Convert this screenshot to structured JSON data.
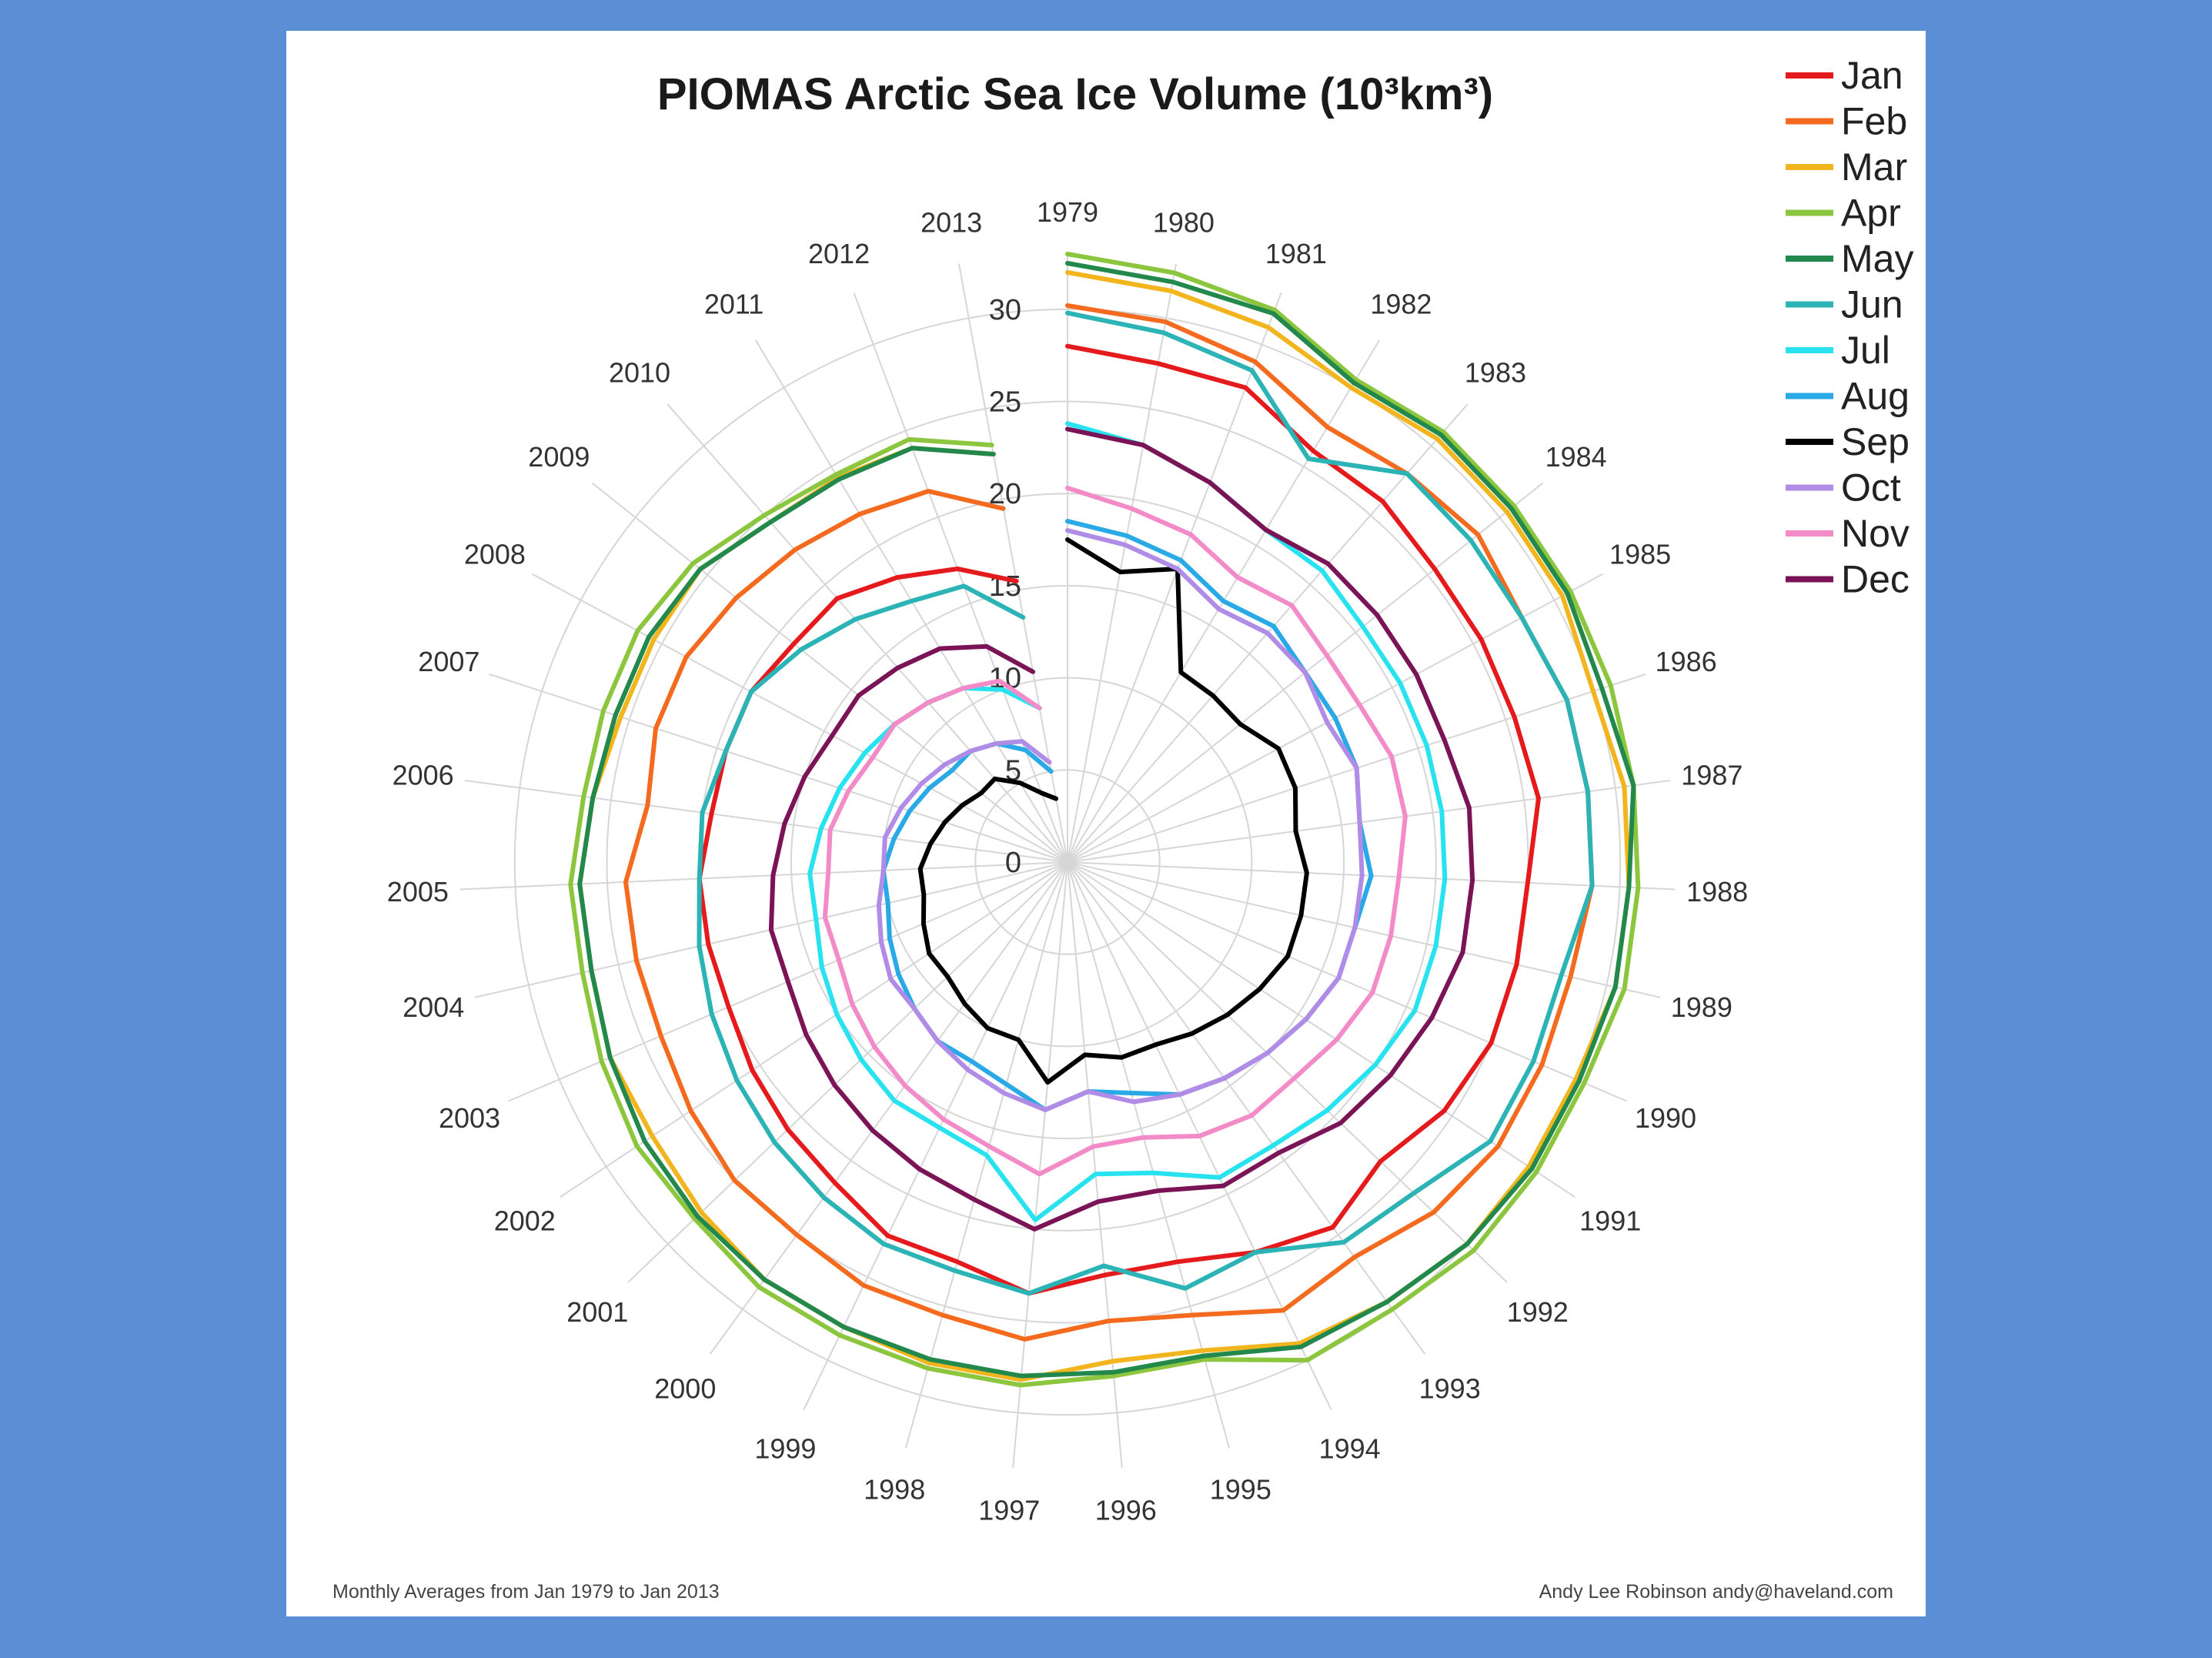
{
  "page": {
    "background": "#5a8fd6",
    "card_background": "#ffffff"
  },
  "chart_data": {
    "type": "radar-line",
    "title": "PIOMAS Arctic Sea Ice Volume (10³km³)",
    "footer_left": "Monthly Averages from Jan 1979 to Jan 2013",
    "footer_right": "Andy Lee Robinson andy@haveland.com",
    "radial_ticks": [
      "0",
      "5",
      "10",
      "15",
      "20",
      "25",
      "30"
    ],
    "radial_tick_values": [
      0,
      5,
      10,
      15,
      20,
      25,
      30
    ],
    "rlim": [
      0,
      33
    ],
    "grid": true,
    "legend_position": "top-right",
    "years": [
      "1979",
      "1980",
      "1981",
      "1982",
      "1983",
      "1984",
      "1985",
      "1986",
      "1987",
      "1988",
      "1989",
      "1990",
      "1991",
      "1992",
      "1993",
      "1994",
      "1995",
      "1996",
      "1997",
      "1998",
      "1999",
      "2000",
      "2001",
      "2002",
      "2003",
      "2004",
      "2005",
      "2006",
      "2007",
      "2008",
      "2009",
      "2010",
      "2011",
      "2012",
      "2013"
    ],
    "series": [
      {
        "name": "Jan",
        "color": "#e41a1c",
        "values": [
          28,
          27.5,
          27.5,
          26,
          26,
          25.5,
          25.5,
          25.5,
          25.8,
          25,
          25,
          25,
          24.5,
          23.5,
          24.5,
          23.5,
          22.5,
          22.5,
          23.5,
          22.5,
          22.5,
          21.5,
          21,
          20.5,
          20,
          20,
          20,
          19.5,
          19.5,
          19.5,
          19,
          19,
          18,
          17,
          15.5
        ]
      },
      {
        "name": "Feb",
        "color": "#f46b1f",
        "values": [
          30.2,
          29.8,
          29,
          27.5,
          28,
          28.5,
          28,
          28.5,
          28.5,
          28.5,
          28,
          28,
          28,
          27.5,
          26.5,
          27,
          25.5,
          25,
          26,
          25.5,
          25.5,
          25,
          25,
          24.5,
          24,
          24,
          24,
          23,
          23.5,
          23.5,
          23,
          22.5,
          22,
          21.5,
          19.5
        ]
      },
      {
        "name": "Mar",
        "color": "#f2b51d",
        "values": [
          32,
          31.5,
          31,
          30,
          30.5,
          30.5,
          30.5,
          30,
          30.5,
          30.5,
          30.5,
          30,
          30,
          30,
          29.5,
          29,
          27.5,
          27.2,
          28.2,
          28.2,
          28,
          28,
          27.5,
          27,
          27,
          26.5,
          26.5,
          26,
          25.5,
          25.5,
          25.5,
          24.5,
          24.3,
          24,
          22.5
        ]
      },
      {
        "name": "Apr",
        "color": "#8cc63e",
        "values": [
          33,
          32.5,
          32,
          30.5,
          31,
          31,
          31,
          31,
          31,
          31,
          31,
          30.5,
          30.5,
          30.5,
          30,
          30,
          28,
          28,
          28.5,
          28.5,
          28.5,
          28.5,
          28,
          28,
          27.5,
          27,
          27,
          26.5,
          26.5,
          26.5,
          26,
          25,
          24.5,
          24.5,
          23
        ]
      },
      {
        "name": "May",
        "color": "#22884b",
        "values": [
          32.5,
          32,
          31.8,
          30.3,
          30.8,
          30.8,
          30.8,
          30.5,
          31,
          30.5,
          30.5,
          30.2,
          30.2,
          30,
          29.5,
          29.2,
          27.8,
          27.8,
          28,
          28,
          28,
          28,
          27.8,
          27.5,
          27,
          26.5,
          26.5,
          26,
          25.8,
          25.8,
          25.5,
          24.5,
          24.2,
          24,
          22.5
        ]
      },
      {
        "name": "Jun",
        "color": "#2bb3b5",
        "values": [
          29.8,
          29.2,
          28.5,
          25.5,
          28,
          28,
          28,
          28.5,
          28.5,
          28.5,
          27.5,
          27.5,
          27.5,
          26,
          25.5,
          23.5,
          24,
          22,
          23.5,
          23,
          23,
          22.5,
          22,
          21.5,
          21,
          20.5,
          20,
          20,
          19.5,
          19.5,
          18.5,
          17.5,
          16.5,
          16,
          13.5
        ]
      },
      {
        "name": "Jul",
        "color": "#29e2ef",
        "values": [
          23.8,
          23,
          22,
          21,
          21,
          20.5,
          20.5,
          20.5,
          20.5,
          20.5,
          20.5,
          20.5,
          20,
          19.5,
          19,
          19,
          17.5,
          17,
          19.5,
          16.5,
          16,
          16,
          15.5,
          15,
          14.5,
          14,
          14,
          13.5,
          13,
          12.5,
          12,
          11.5,
          11,
          10,
          8.5
        ]
      },
      {
        "name": "Aug",
        "color": "#29a9e5",
        "values": [
          18.5,
          18,
          17.5,
          16.5,
          17,
          16.5,
          16.5,
          16.5,
          16,
          16.5,
          16,
          16,
          15.5,
          15,
          14.5,
          14,
          13,
          12.5,
          13.5,
          12.5,
          12,
          12,
          11.5,
          11,
          10.5,
          10,
          10,
          9.5,
          9,
          8.5,
          8,
          8,
          7.5,
          6.5,
          5
        ]
      },
      {
        "name": "Sep",
        "color": "#000000",
        "values": [
          17.5,
          16,
          17,
          12,
          12,
          12,
          13,
          13,
          12.5,
          13,
          13,
          13,
          12.5,
          12,
          11.5,
          11,
          11,
          10.5,
          12,
          10,
          10,
          9.5,
          9,
          9,
          8.5,
          8,
          8,
          7.5,
          7,
          6.5,
          6,
          6,
          5,
          4,
          3.5
        ]
      },
      {
        "name": "Oct",
        "color": "#b18ce6",
        "values": [
          18,
          17.5,
          17,
          16,
          16.5,
          16.5,
          16,
          16.5,
          16,
          16,
          16,
          16,
          15.5,
          15,
          14.5,
          14,
          13.5,
          12.5,
          13.5,
          13,
          12.5,
          12,
          11.5,
          11.5,
          11,
          10.5,
          10,
          10,
          9.5,
          9,
          8.5,
          8,
          7.5,
          7,
          5.5
        ]
      },
      {
        "name": "Nov",
        "color": "#f28bc7",
        "values": [
          20.3,
          19.5,
          19,
          18,
          18.5,
          18,
          18,
          18.5,
          18.5,
          18,
          18,
          18,
          17.5,
          17,
          17,
          16.5,
          15.5,
          15.5,
          17,
          16,
          15.5,
          15,
          14.5,
          14,
          13.5,
          13.5,
          13,
          13,
          12.5,
          12,
          12,
          11.5,
          11,
          10.5,
          8.5
        ]
      },
      {
        "name": "Dec",
        "color": "#7b1456",
        "values": [
          23.5,
          23,
          22,
          21,
          21.5,
          21.5,
          21.5,
          21.5,
          22,
          22,
          22,
          21.5,
          21,
          20.5,
          19.5,
          19.5,
          18.5,
          18.5,
          20,
          19,
          18.5,
          18,
          17.5,
          17,
          16.5,
          16.5,
          16,
          15.5,
          15,
          14.5,
          14.5,
          14,
          13.5,
          12.5,
          10.5
        ]
      }
    ]
  }
}
